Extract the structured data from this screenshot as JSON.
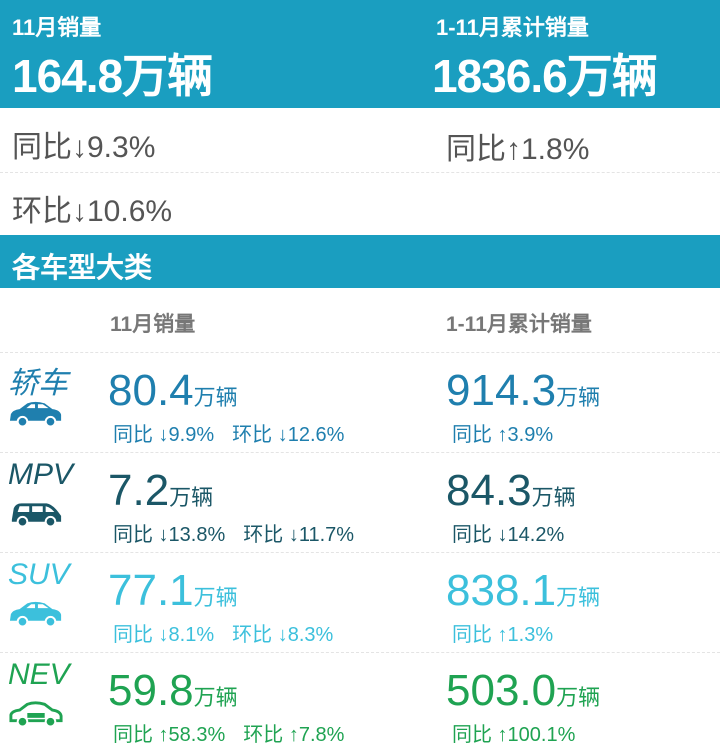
{
  "summary": {
    "month_label": "11月销量",
    "month_value": "164.8万辆",
    "month_yoy": "同比↓9.3%",
    "month_mom": "环比↓10.6%",
    "ytd_label": "1-11月累计销量",
    "ytd_value": "1836.6万辆",
    "ytd_yoy": "同比↑1.8%"
  },
  "section_title": "各车型大类",
  "columns": {
    "month": "11月销量",
    "ytd": "1-11月累计销量"
  },
  "unit": "万辆",
  "categories": [
    {
      "name": "轿车",
      "icon": "sedan-icon",
      "color": "#1f7fae",
      "month": "80.4",
      "month_yoy": "同比 ↓9.9%",
      "month_mom": "环比 ↓12.6%",
      "ytd": "914.3",
      "ytd_yoy": "同比 ↑3.9%"
    },
    {
      "name": "MPV",
      "icon": "mpv-icon",
      "color": "#1b5767",
      "month": "7.2",
      "month_yoy": "同比 ↓13.8%",
      "month_mom": "环比 ↓11.7%",
      "ytd": "84.3",
      "ytd_yoy": "同比 ↓14.2%"
    },
    {
      "name": "SUV",
      "icon": "suv-icon",
      "color": "#3cc0dc",
      "month": "77.1",
      "month_yoy": "同比 ↓8.1%",
      "month_mom": "环比 ↓8.3%",
      "ytd": "838.1",
      "ytd_yoy": "同比 ↑1.3%"
    },
    {
      "name": "NEV",
      "icon": "nev-icon",
      "color": "#1fa352",
      "month": "59.8",
      "month_yoy": "同比 ↑58.3%",
      "month_mom": "环比 ↑7.8%",
      "ytd": "503.0",
      "ytd_yoy": "同比 ↑100.1%"
    }
  ]
}
